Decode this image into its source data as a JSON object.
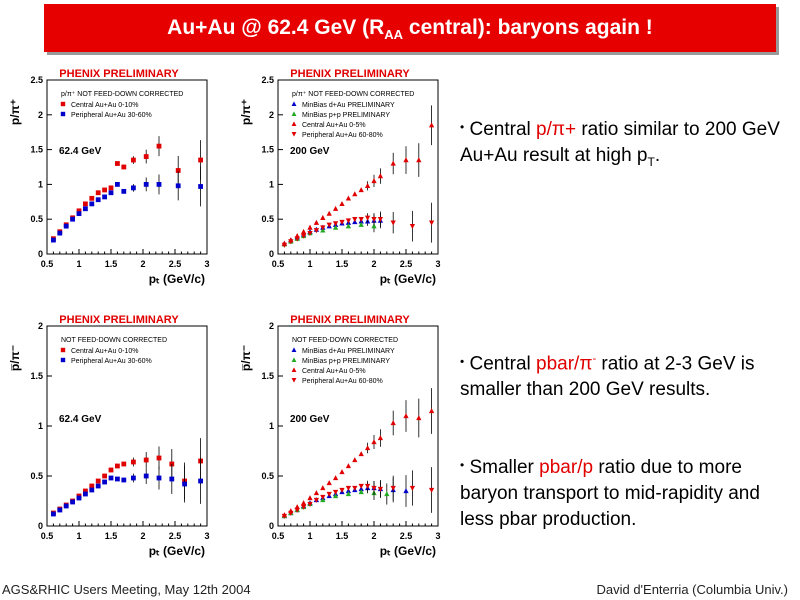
{
  "slide": {
    "title_main": "Au+Au @ 62.4 GeV (R",
    "title_sub": "AA",
    "title_tail": " central): baryons again !",
    "footer_left": "AGS&RHIC Users Meeting, May 12th 2004",
    "footer_right": "David d'Enterria (Columbia Univ.)"
  },
  "bullets": {
    "b1": {
      "pre": "Central ",
      "hl": "p/π+",
      "post": " ratio similar to 200 GeV Au+Au result at high p",
      "post_sub": "T",
      "post_tail": "."
    },
    "b2": {
      "pre": "Central ",
      "hl": "pbar/π",
      "hl_sup": "-",
      "post": " ratio at 2-3 GeV is smaller than 200 GeV results."
    },
    "b3": {
      "pre": "Smaller ",
      "hl": "pbar/p",
      "post": " ratio due to more baryon transport to mid-rapidity and less pbar production."
    }
  },
  "colors": {
    "central": "#e00000",
    "peripheral": "#0000cc",
    "dau": "#0000cc",
    "pp": "#22aa22",
    "banner": "#e60000"
  },
  "chart_data": [
    {
      "type": "scatter",
      "header": "PHENIX PRELIMINARY",
      "ylabel": "p/π⁺",
      "xlabel": "pₜ (GeV/c)",
      "energy": "62.4 GeV",
      "note": "p/π⁺ NOT FEED-DOWN CORRECTED",
      "xlim": [
        0.5,
        3
      ],
      "ylim": [
        0,
        2.5
      ],
      "xticks": [
        0.5,
        1,
        1.5,
        2,
        2.5,
        3
      ],
      "yticks": [
        0,
        0.5,
        1,
        1.5,
        2,
        2.5
      ],
      "series": [
        {
          "name": "Central    Au+Au 0-10%",
          "marker": "square",
          "color": "#e00000",
          "x": [
            0.6,
            0.7,
            0.8,
            0.9,
            1.0,
            1.1,
            1.2,
            1.3,
            1.4,
            1.5,
            1.6,
            1.7,
            1.85,
            2.05,
            2.25,
            2.55,
            2.9
          ],
          "y": [
            0.22,
            0.32,
            0.42,
            0.52,
            0.62,
            0.72,
            0.8,
            0.88,
            0.92,
            0.95,
            1.3,
            1.25,
            1.35,
            1.4,
            1.55,
            1.2,
            1.35
          ]
        },
        {
          "name": "Peripheral Au+Au 30-60%",
          "marker": "square",
          "color": "#0000cc",
          "x": [
            0.6,
            0.7,
            0.8,
            0.9,
            1.0,
            1.1,
            1.2,
            1.3,
            1.4,
            1.5,
            1.6,
            1.7,
            1.85,
            2.05,
            2.25,
            2.55,
            2.9
          ],
          "y": [
            0.2,
            0.3,
            0.4,
            0.5,
            0.58,
            0.65,
            0.72,
            0.78,
            0.82,
            0.88,
            1.0,
            0.9,
            0.95,
            1.0,
            1.0,
            0.98,
            0.97
          ]
        }
      ]
    },
    {
      "type": "scatter",
      "header": "PHENIX PRELIMINARY",
      "ylabel": "p/π⁺",
      "xlabel": "pₜ (GeV/c)",
      "energy": "200 GeV",
      "note": "p/π⁺ NOT FEED-DOWN CORRECTED",
      "xlim": [
        0.5,
        3
      ],
      "ylim": [
        0,
        2.5
      ],
      "xticks": [
        0.5,
        1,
        1.5,
        2,
        2.5,
        3
      ],
      "yticks": [
        0,
        0.5,
        1,
        1.5,
        2,
        2.5
      ],
      "series": [
        {
          "name": "MinBias d+Au PRELIMINARY",
          "marker": "triangle",
          "color": "#0000cc",
          "x": [
            0.6,
            0.7,
            0.8,
            0.9,
            1.0,
            1.1,
            1.2,
            1.3,
            1.4,
            1.5,
            1.6,
            1.7,
            1.8,
            1.9,
            2.0,
            2.1
          ],
          "y": [
            0.15,
            0.2,
            0.24,
            0.28,
            0.32,
            0.35,
            0.38,
            0.4,
            0.42,
            0.44,
            0.45,
            0.46,
            0.47,
            0.47,
            0.48,
            0.48
          ]
        },
        {
          "name": "MinBias p+p PRELIMINARY",
          "marker": "triangle",
          "color": "#22aa22",
          "x": [
            0.6,
            0.7,
            0.8,
            0.9,
            1.0,
            1.2,
            1.4,
            1.6,
            1.8,
            2.0
          ],
          "y": [
            0.14,
            0.18,
            0.22,
            0.26,
            0.3,
            0.34,
            0.38,
            0.4,
            0.42,
            0.4
          ]
        },
        {
          "name": "Central    Au+Au 0-5%",
          "marker": "triangle",
          "color": "#e00000",
          "x": [
            0.6,
            0.7,
            0.8,
            0.9,
            1.0,
            1.1,
            1.2,
            1.3,
            1.4,
            1.5,
            1.6,
            1.7,
            1.8,
            1.9,
            2.0,
            2.1,
            2.3,
            2.5,
            2.7,
            2.9
          ],
          "y": [
            0.15,
            0.2,
            0.26,
            0.32,
            0.38,
            0.45,
            0.52,
            0.58,
            0.65,
            0.72,
            0.8,
            0.86,
            0.92,
            0.98,
            1.05,
            1.12,
            1.3,
            1.35,
            1.35,
            1.85
          ]
        },
        {
          "name": "Peripheral Au+Au 60-80%",
          "marker": "triangle-down",
          "color": "#e00000",
          "x": [
            0.6,
            0.7,
            0.8,
            0.9,
            1.0,
            1.1,
            1.2,
            1.3,
            1.4,
            1.5,
            1.6,
            1.7,
            1.8,
            1.9,
            2.0,
            2.1,
            2.3,
            2.6,
            2.9
          ],
          "y": [
            0.13,
            0.18,
            0.22,
            0.26,
            0.3,
            0.34,
            0.38,
            0.42,
            0.44,
            0.46,
            0.48,
            0.5,
            0.5,
            0.52,
            0.5,
            0.5,
            0.45,
            0.4,
            0.45
          ]
        }
      ]
    },
    {
      "type": "scatter",
      "header": "PHENIX PRELIMINARY",
      "ylabel": "p̅/π⁻",
      "xlabel": "pₜ (GeV/c)",
      "energy": "62.4 GeV",
      "note": "NOT FEED-DOWN CORRECTED",
      "xlim": [
        0.5,
        3
      ],
      "ylim": [
        0,
        2
      ],
      "xticks": [
        0.5,
        1,
        1.5,
        2,
        2.5,
        3
      ],
      "yticks": [
        0,
        0.5,
        1,
        1.5,
        2
      ],
      "series": [
        {
          "name": "Central    Au+Au 0-10%",
          "marker": "square",
          "color": "#e00000",
          "x": [
            0.6,
            0.7,
            0.8,
            0.9,
            1.0,
            1.1,
            1.2,
            1.3,
            1.4,
            1.5,
            1.6,
            1.7,
            1.85,
            2.05,
            2.25,
            2.45,
            2.65,
            2.9
          ],
          "y": [
            0.13,
            0.17,
            0.21,
            0.25,
            0.3,
            0.35,
            0.4,
            0.45,
            0.5,
            0.56,
            0.6,
            0.62,
            0.64,
            0.66,
            0.68,
            0.62,
            0.45,
            0.65
          ]
        },
        {
          "name": "Peripheral Au+Au 30-60%",
          "marker": "square",
          "color": "#0000cc",
          "x": [
            0.6,
            0.7,
            0.8,
            0.9,
            1.0,
            1.1,
            1.2,
            1.3,
            1.4,
            1.5,
            1.6,
            1.7,
            1.85,
            2.05,
            2.25,
            2.45,
            2.65,
            2.9
          ],
          "y": [
            0.12,
            0.16,
            0.2,
            0.24,
            0.28,
            0.32,
            0.36,
            0.4,
            0.44,
            0.48,
            0.47,
            0.46,
            0.48,
            0.5,
            0.48,
            0.47,
            0.42,
            0.45
          ]
        }
      ]
    },
    {
      "type": "scatter",
      "header": "PHENIX PRELIMINARY",
      "ylabel": "p̅/π⁻",
      "xlabel": "pₜ (GeV/c)",
      "energy": "200 GeV",
      "note": "NOT FEED-DOWN CORRECTED",
      "xlim": [
        0.5,
        3
      ],
      "ylim": [
        0,
        2
      ],
      "xticks": [
        0.5,
        1,
        1.5,
        2,
        2.5,
        3
      ],
      "yticks": [
        0,
        0.5,
        1,
        1.5,
        2
      ],
      "series": [
        {
          "name": "MinBias d+Au PRELIMINARY",
          "marker": "triangle",
          "color": "#0000cc",
          "x": [
            0.6,
            0.7,
            0.8,
            0.9,
            1.0,
            1.1,
            1.2,
            1.3,
            1.4,
            1.5,
            1.6,
            1.7,
            1.8,
            1.9,
            2.0,
            2.1,
            2.3,
            2.5
          ],
          "y": [
            0.1,
            0.13,
            0.16,
            0.2,
            0.23,
            0.26,
            0.28,
            0.3,
            0.32,
            0.34,
            0.35,
            0.36,
            0.37,
            0.38,
            0.38,
            0.37,
            0.36,
            0.35
          ]
        },
        {
          "name": "MinBias p+p PRELIMINARY",
          "marker": "triangle",
          "color": "#22aa22",
          "x": [
            0.6,
            0.7,
            0.8,
            0.9,
            1.0,
            1.2,
            1.4,
            1.6,
            1.8,
            2.0,
            2.2
          ],
          "y": [
            0.1,
            0.13,
            0.16,
            0.19,
            0.22,
            0.26,
            0.3,
            0.32,
            0.34,
            0.33,
            0.32
          ]
        },
        {
          "name": "Central    Au+Au 0-5%",
          "marker": "triangle",
          "color": "#e00000",
          "x": [
            0.6,
            0.7,
            0.8,
            0.9,
            1.0,
            1.1,
            1.2,
            1.3,
            1.4,
            1.5,
            1.6,
            1.7,
            1.8,
            1.9,
            2.0,
            2.1,
            2.3,
            2.5,
            2.7,
            2.9
          ],
          "y": [
            0.11,
            0.15,
            0.19,
            0.23,
            0.28,
            0.33,
            0.38,
            0.43,
            0.48,
            0.54,
            0.6,
            0.66,
            0.72,
            0.78,
            0.84,
            0.88,
            1.03,
            1.1,
            1.08,
            1.15
          ]
        },
        {
          "name": "Peripheral Au+Au 60-80%",
          "marker": "triangle-down",
          "color": "#e00000",
          "x": [
            0.6,
            0.7,
            0.8,
            0.9,
            1.0,
            1.1,
            1.2,
            1.3,
            1.4,
            1.5,
            1.6,
            1.7,
            1.8,
            1.9,
            2.0,
            2.1,
            2.3,
            2.6,
            2.9
          ],
          "y": [
            0.1,
            0.13,
            0.16,
            0.19,
            0.22,
            0.26,
            0.29,
            0.32,
            0.34,
            0.36,
            0.38,
            0.38,
            0.4,
            0.4,
            0.38,
            0.37,
            0.38,
            0.38,
            0.36
          ]
        }
      ]
    }
  ]
}
